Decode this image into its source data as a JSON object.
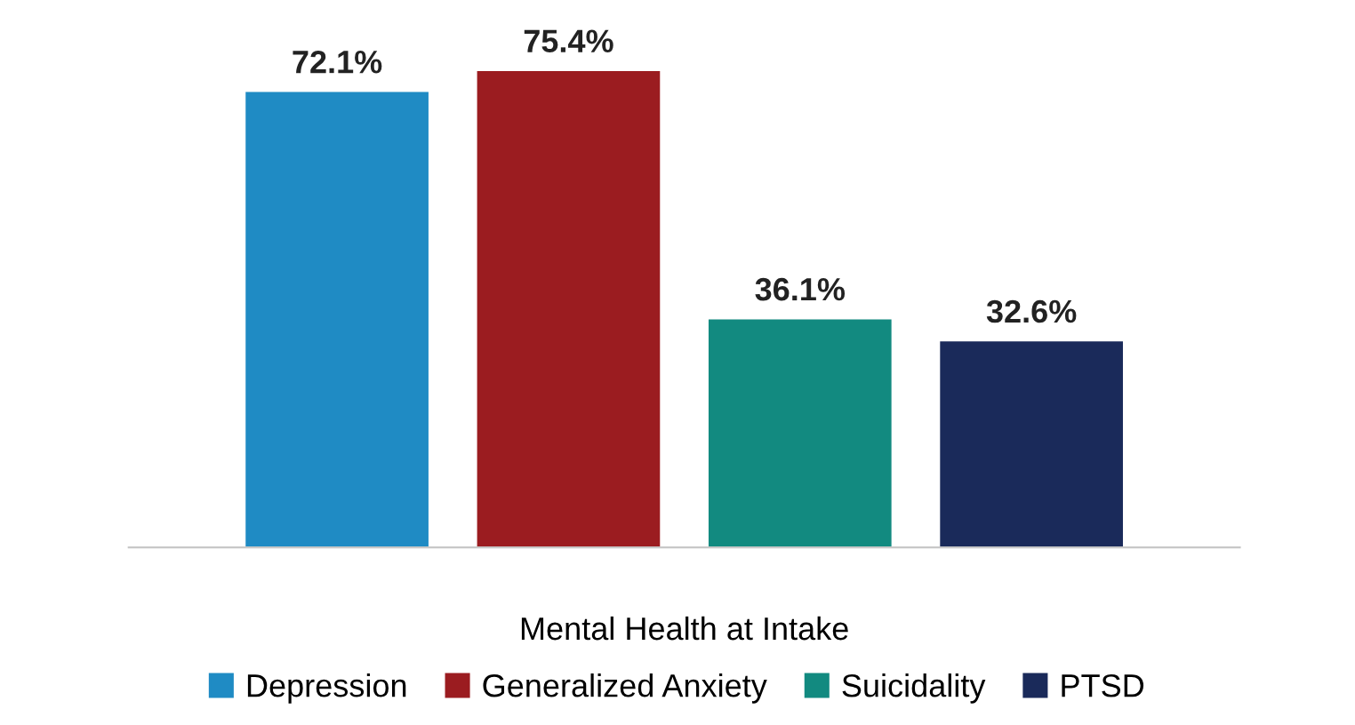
{
  "chart_data": {
    "type": "bar",
    "xlabel": "Mental Health at Intake",
    "categories": [
      null
    ],
    "series": [
      {
        "name": "Depression",
        "color": "#1f8bc4",
        "values": [
          72.1
        ],
        "value_labels": [
          "72.1%"
        ]
      },
      {
        "name": "Generalized Anxiety",
        "color": "#9b1c20",
        "values": [
          75.4
        ],
        "value_labels": [
          "75.4%"
        ]
      },
      {
        "name": "Suicidality",
        "color": "#128a80",
        "values": [
          36.1
        ],
        "value_labels": [
          "36.1%"
        ]
      },
      {
        "name": "PTSD",
        "color": "#1a2a5a",
        "values": [
          32.6
        ],
        "value_labels": [
          "32.6%"
        ]
      }
    ],
    "legend": "bottom",
    "grid": false,
    "tick_labels": "x"
  }
}
